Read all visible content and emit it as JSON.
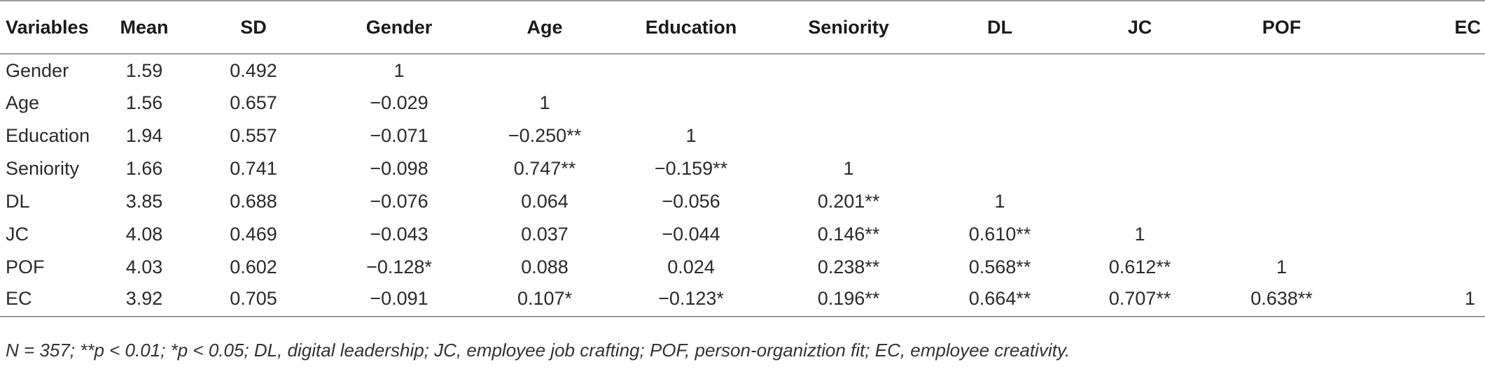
{
  "table": {
    "columns": [
      "Variables",
      "Mean",
      "SD",
      "Gender",
      "Age",
      "Education",
      "Seniority",
      "DL",
      "JC",
      "POF",
      "EC"
    ],
    "rows": [
      [
        "Gender",
        "1.59",
        "0.492",
        "1",
        "",
        "",
        "",
        "",
        "",
        "",
        ""
      ],
      [
        "Age",
        "1.56",
        "0.657",
        "−0.029",
        "1",
        "",
        "",
        "",
        "",
        "",
        ""
      ],
      [
        "Education",
        "1.94",
        "0.557",
        "−0.071",
        "−0.250**",
        "1",
        "",
        "",
        "",
        "",
        ""
      ],
      [
        "Seniority",
        "1.66",
        "0.741",
        "−0.098",
        "0.747**",
        "−0.159**",
        "1",
        "",
        "",
        "",
        ""
      ],
      [
        "DL",
        "3.85",
        "0.688",
        "−0.076",
        "0.064",
        "−0.056",
        "0.201**",
        "1",
        "",
        "",
        ""
      ],
      [
        "JC",
        "4.08",
        "0.469",
        "−0.043",
        "0.037",
        "−0.044",
        "0.146**",
        "0.610**",
        "1",
        "",
        ""
      ],
      [
        "POF",
        "4.03",
        "0.602",
        "−0.128*",
        "0.088",
        "0.024",
        "0.238**",
        "0.568**",
        "0.612**",
        "1",
        ""
      ],
      [
        "EC",
        "3.92",
        "0.705",
        "−0.091",
        "0.107*",
        "−0.123*",
        "0.196**",
        "0.664**",
        "0.707**",
        "0.638**",
        "1"
      ]
    ]
  },
  "footnote": "N = 357; **p < 0.01; *p < 0.05; DL, digital leadership; JC, employee job crafting; POF, person-organiztion fit; EC, employee creativity."
}
